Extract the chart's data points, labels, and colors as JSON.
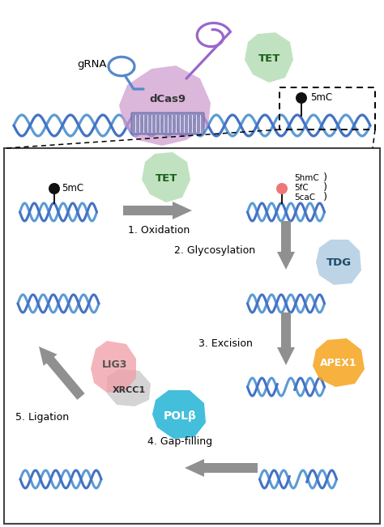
{
  "bg_color": "#ffffff",
  "dna_color1": "#4472C4",
  "dna_color2": "#5B9BD5",
  "colors": {
    "tet": "#a8d8a8",
    "tet_border": "#6db86d",
    "dcas9_body": "#cc99cc",
    "dcas9_light": "#ddbbdd",
    "grna_blue": "#5588cc",
    "grna_purple": "#9966cc",
    "tdg": "#aac8e0",
    "apex1": "#f5a623",
    "polb": "#29b6d8",
    "lig3": "#f0a0a8",
    "xrcc1": "#c8c8c8",
    "dot_black": "#111111",
    "dot_pink": "#ee7777",
    "arrow_gray": "#909090",
    "border": "#444444"
  },
  "labels": {
    "grna": "gRNA",
    "dcas9": "dCas9",
    "tet": "TET",
    "5mc": "5mC",
    "5hmc": "5hmC",
    "5fc": "5fC",
    "5cac": "5caC",
    "tdg": "TDG",
    "apex1": "APEX1",
    "polb": "POLβ",
    "lig3": "LIG3",
    "xrcc1": "XRCC1",
    "step1": "1. Oxidation",
    "step2": "2. Glycosylation",
    "step3": "3. Excision",
    "step4": "4. Gap-filling",
    "step5": "5. Ligation"
  }
}
